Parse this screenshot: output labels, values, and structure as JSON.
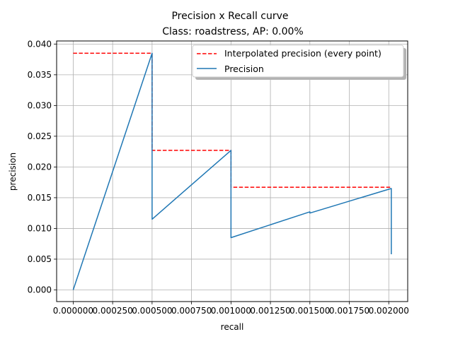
{
  "chart_data": {
    "type": "line",
    "title": "Precision x Recall curve",
    "subtitle": "Class: roadstress, AP: 0.00%",
    "xlabel": "recall",
    "ylabel": "precision",
    "xlim": [
      -0.000105,
      0.00212
    ],
    "ylim": [
      -0.0019,
      0.0405
    ],
    "xticks": [
      0,
      0.00025,
      0.0005,
      0.00075,
      0.001,
      0.00125,
      0.0015,
      0.00175,
      0.002
    ],
    "xtick_labels": [
      "0.000000",
      "0.000250",
      "0.000500",
      "0.000750",
      "0.001000",
      "0.001250",
      "0.001500",
      "0.001750",
      "0.002000"
    ],
    "yticks": [
      0,
      0.005,
      0.01,
      0.015,
      0.02,
      0.025,
      0.03,
      0.035,
      0.04
    ],
    "ytick_labels": [
      "0.000",
      "0.005",
      "0.010",
      "0.015",
      "0.020",
      "0.025",
      "0.030",
      "0.035",
      "0.040"
    ],
    "grid": true,
    "legend_placement": "upper-right",
    "series": [
      {
        "name": "Interpolated precision (every point)",
        "color": "#ff0000",
        "style": "dashed",
        "x": [
          0,
          0.0005,
          0.0005,
          0.0005,
          0.001,
          0.001,
          0.001,
          0.002016,
          0.002016
        ],
        "y": [
          0.0385,
          0.0385,
          0.0385,
          0.0227,
          0.0227,
          0.0227,
          0.0167,
          0.0167,
          0.0167
        ]
      },
      {
        "name": "Precision",
        "color": "#1f77b4",
        "style": "solid",
        "x": [
          0,
          0.0005,
          0.0005,
          0.001,
          0.001,
          0.0015,
          0.0015,
          0.002016,
          0.002016
        ],
        "y": [
          0,
          0.0385,
          0.0115,
          0.0227,
          0.0085,
          0.0127,
          0.0125,
          0.0165,
          0.0058
        ]
      }
    ]
  }
}
